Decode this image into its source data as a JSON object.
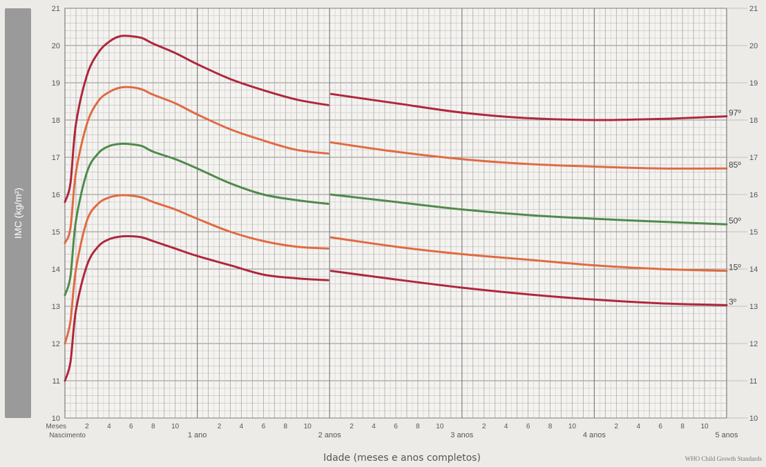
{
  "chart_data": {
    "type": "line",
    "title": "",
    "xlabel": "Idade (meses e anos completos)",
    "ylabel": "IMC (kg/m²)",
    "source": "WHO Child Growth Standards",
    "ylim": [
      10,
      21
    ],
    "xlim_months": [
      0,
      60
    ],
    "y_ticks": [
      10,
      11,
      12,
      13,
      14,
      15,
      16,
      17,
      18,
      19,
      20,
      21
    ],
    "x_tick_labels": {
      "start_top": "Meses",
      "start_bottom": "Nascimento",
      "months": [
        "2",
        "4",
        "6",
        "8",
        "10"
      ],
      "years": [
        "1 ano",
        "2 anos",
        "3 anos",
        "4 anos",
        "5 anos"
      ]
    },
    "grid": true,
    "legend": "right-edge labels",
    "series": [
      {
        "name": "97º",
        "color": "#b0263b",
        "x": [
          0,
          0.5,
          1,
          2,
          3,
          4,
          5,
          6,
          7,
          8,
          10,
          12,
          15,
          18,
          21,
          24,
          24,
          30,
          36,
          42,
          48,
          54,
          60
        ],
        "y": [
          15.8,
          16.3,
          17.9,
          19.2,
          19.8,
          20.1,
          20.25,
          20.25,
          20.2,
          20.05,
          19.8,
          19.5,
          19.1,
          18.8,
          18.55,
          18.4,
          18.7,
          18.45,
          18.2,
          18.05,
          18.0,
          18.03,
          18.1
        ]
      },
      {
        "name": "85º",
        "color": "#e06a42",
        "x": [
          0,
          0.5,
          1,
          2,
          3,
          4,
          5,
          6,
          7,
          8,
          10,
          12,
          15,
          18,
          21,
          24,
          24,
          30,
          36,
          42,
          48,
          54,
          60
        ],
        "y": [
          14.7,
          15.1,
          16.6,
          17.9,
          18.5,
          18.75,
          18.87,
          18.88,
          18.82,
          18.68,
          18.45,
          18.15,
          17.75,
          17.45,
          17.2,
          17.1,
          17.4,
          17.15,
          16.95,
          16.82,
          16.75,
          16.7,
          16.7
        ]
      },
      {
        "name": "50º",
        "color": "#4f8a4a",
        "x": [
          0,
          0.5,
          1,
          2,
          3,
          4,
          5,
          6,
          7,
          8,
          10,
          12,
          15,
          18,
          21,
          24,
          24,
          30,
          36,
          42,
          48,
          54,
          60
        ],
        "y": [
          13.3,
          13.8,
          15.3,
          16.6,
          17.1,
          17.3,
          17.36,
          17.35,
          17.3,
          17.15,
          16.95,
          16.7,
          16.3,
          16.0,
          15.85,
          15.75,
          16.0,
          15.8,
          15.6,
          15.45,
          15.35,
          15.27,
          15.2
        ]
      },
      {
        "name": "15º",
        "color": "#e06a42",
        "x": [
          0,
          0.5,
          1,
          2,
          3,
          4,
          5,
          6,
          7,
          8,
          10,
          12,
          15,
          18,
          21,
          24,
          24,
          30,
          36,
          42,
          48,
          54,
          60
        ],
        "y": [
          12.0,
          12.6,
          14.0,
          15.3,
          15.75,
          15.92,
          15.98,
          15.97,
          15.92,
          15.8,
          15.6,
          15.35,
          15.0,
          14.75,
          14.6,
          14.55,
          14.85,
          14.6,
          14.4,
          14.25,
          14.1,
          14.0,
          13.95
        ]
      },
      {
        "name": "3º",
        "color": "#b0263b",
        "x": [
          0,
          0.5,
          1,
          2,
          3,
          4,
          5,
          6,
          7,
          8,
          10,
          12,
          15,
          18,
          21,
          24,
          24,
          30,
          36,
          42,
          48,
          54,
          60
        ],
        "y": [
          11.0,
          11.5,
          12.9,
          14.1,
          14.6,
          14.8,
          14.87,
          14.88,
          14.85,
          14.75,
          14.55,
          14.35,
          14.1,
          13.85,
          13.75,
          13.7,
          13.95,
          13.72,
          13.5,
          13.32,
          13.18,
          13.08,
          13.03
        ]
      }
    ]
  }
}
